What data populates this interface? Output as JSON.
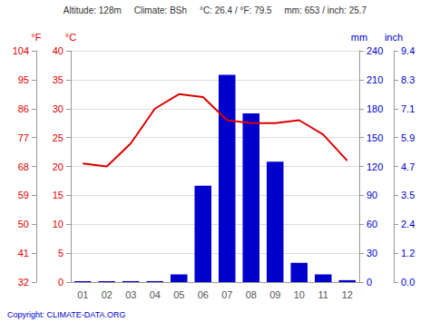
{
  "chart_data": {
    "type": "bar",
    "categories": [
      "01",
      "02",
      "03",
      "04",
      "05",
      "06",
      "07",
      "08",
      "09",
      "10",
      "11",
      "12"
    ],
    "series": [
      {
        "type": "bar",
        "color": "#0000cc",
        "axis": "y2",
        "values": [
          1,
          1,
          1,
          1,
          8,
          100,
          215,
          175,
          125,
          20,
          8,
          2
        ]
      },
      {
        "type": "line",
        "color": "#dd0000",
        "values": [
          20.5,
          20.0,
          24.0,
          30.0,
          32.5,
          32.0,
          28.0,
          27.5,
          27.5,
          28.0,
          25.5,
          21.0
        ]
      }
    ],
    "ylabel": "°C",
    "ylim": [
      0,
      40
    ],
    "yticks": [
      0,
      5,
      10,
      15,
      20,
      25,
      30,
      35,
      40
    ],
    "y2label": "mm",
    "y2lim": [
      0,
      240
    ],
    "y2ticks": [
      0,
      30,
      60,
      90,
      120,
      150,
      180,
      210,
      240
    ],
    "y3label": "°F",
    "y3lim": [
      32,
      104
    ],
    "y3ticks": [
      32,
      41,
      50,
      59,
      68,
      77,
      86,
      95,
      104
    ],
    "y4label": "inch",
    "y4lim": [
      0,
      240
    ],
    "y4ticks": [
      {
        "value": 0,
        "label": "0.0"
      },
      {
        "value": 30,
        "label": "1.2"
      },
      {
        "value": 60,
        "label": "2.4"
      },
      {
        "value": 90,
        "label": "3.5"
      },
      {
        "value": 120,
        "label": "4.7"
      },
      {
        "value": 150,
        "label": "5.9"
      },
      {
        "value": 180,
        "label": "7.1"
      },
      {
        "value": 210,
        "label": "8.3"
      },
      {
        "value": 240,
        "label": "9.4"
      }
    ],
    "annotations": [
      "Altitude: 128m",
      "Climate: BSh",
      "°C: 26.4 / °F: 79.5",
      "mm: 653 / inch: 25.7"
    ],
    "caption": "Copyright: CLIMATE-DATA.ORG",
    "grid": true
  }
}
